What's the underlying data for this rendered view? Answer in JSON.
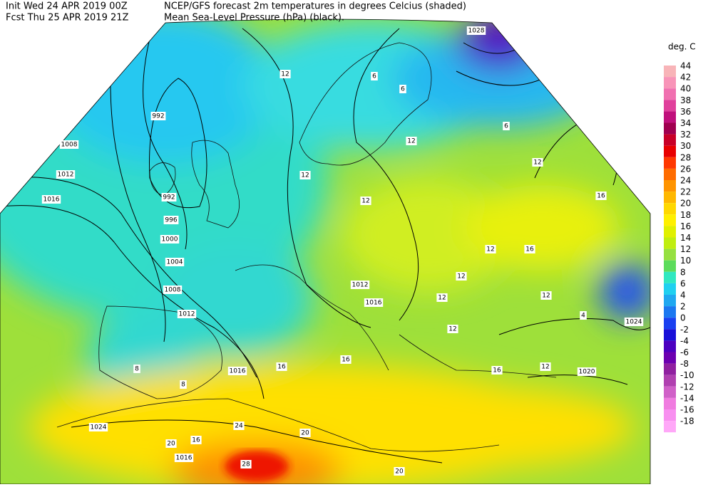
{
  "header": {
    "init": "Init  Wed 24 APR 2019 00Z",
    "fcst": "Fcst Thu 25 APR 2019 21Z",
    "title": "NCEP/GFS forecast 2m temperatures in degrees Celcius (shaded)",
    "subtitle": "Mean Sea-Level Pressure (hPa) (black)."
  },
  "legend": {
    "title": "deg. C",
    "values": [
      44,
      42,
      40,
      38,
      36,
      34,
      32,
      30,
      28,
      26,
      24,
      22,
      20,
      18,
      16,
      14,
      12,
      10,
      8,
      6,
      4,
      2,
      0,
      -2,
      -4,
      -6,
      -8,
      -10,
      -12,
      -14,
      -16,
      -18
    ],
    "colors": [
      "#f8b4b8",
      "#f894b8",
      "#f070b0",
      "#e0409c",
      "#c0107c",
      "#a00050",
      "#c80028",
      "#e80000",
      "#ff3800",
      "#ff6c00",
      "#ff9400",
      "#ffb800",
      "#ffd800",
      "#fff000",
      "#e0f000",
      "#c0ee10",
      "#96e040",
      "#5cdc5c",
      "#30e8c0",
      "#20d0f0",
      "#20a8f0",
      "#1c78f0",
      "#1a40f0",
      "#1810d8",
      "#4c00c0",
      "#6c00b0",
      "#9020a0",
      "#b040b0",
      "#d060c8",
      "#f07ce0",
      "#f890f0",
      "#ffa8f8"
    ]
  },
  "map": {
    "isobar_labels": [
      992,
      1008,
      1012,
      1016,
      992,
      996,
      1000,
      1004,
      1008,
      1012,
      1016,
      1024,
      1016,
      1028,
      1024,
      1020,
      1012,
      1016
    ],
    "temperature_labels": [
      12,
      12,
      12,
      16,
      12,
      16,
      12,
      12,
      12,
      16,
      16,
      20,
      24,
      20,
      16,
      28,
      20,
      8,
      12,
      8,
      6,
      6,
      6,
      12,
      4,
      12,
      12,
      16
    ]
  }
}
